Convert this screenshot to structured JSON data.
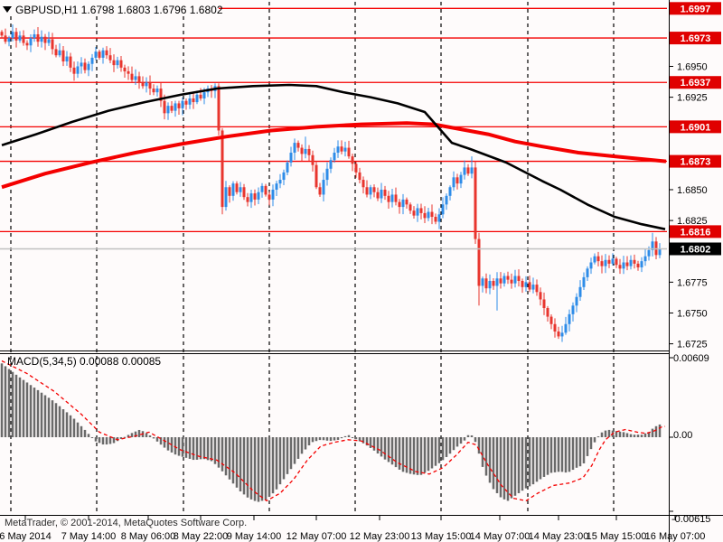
{
  "window": {
    "background": "#fefbfb",
    "foreground": "#000000"
  },
  "title": {
    "marker_icon": "triangle-down",
    "symbol_period": "GBPUSD,H1",
    "open": "1.6798",
    "high": "1.6803",
    "low": "1.6796",
    "close": "1.6802"
  },
  "footer": {
    "copyright": "MetaTrader, © 2001-2014, MetaQuotes Software Corp."
  },
  "colors": {
    "bull_candle": "#2e8ce8",
    "bear_candle": "#e8352e",
    "level_line": "#f40000",
    "level_badge_bg": "#e00000",
    "price_badge_bg": "#000000",
    "badge_text": "#ffffff",
    "ma_black": "#000000",
    "ma_red": "#f40000",
    "bid_line": "#c0c0c0",
    "macd_bar": "#6a6a6a",
    "macd_signal": "#f40000",
    "axis_text": "#000000",
    "separator": "#000000"
  },
  "chart_data": {
    "type": "candlestick",
    "symbol": "GBPUSD",
    "timeframe": "H1",
    "price_axis": {
      "plain_ticks": [
        1.695,
        1.6925,
        1.685,
        1.6825,
        1.6775,
        1.675,
        1.6725
      ],
      "level_lines": [
        1.6997,
        1.6973,
        1.6937,
        1.6901,
        1.6873,
        1.6816
      ],
      "bid_price": 1.6802,
      "ylim": [
        1.6718,
        1.7002
      ]
    },
    "candles": {
      "start_x": 2,
      "spacing": 4,
      "first_open": 1.6978,
      "closes": [
        1.6975,
        1.697,
        1.6973,
        1.6978,
        1.6971,
        1.6975,
        1.6969,
        1.6967,
        1.6973,
        1.6976,
        1.697,
        1.6974,
        1.6969,
        1.6972,
        1.6964,
        1.6959,
        1.6963,
        1.6954,
        1.6958,
        1.6949,
        1.6944,
        1.695,
        1.6953,
        1.6947,
        1.6952,
        1.6957,
        1.6962,
        1.6957,
        1.6963,
        1.6959,
        1.6955,
        1.6951,
        1.6955,
        1.6949,
        1.6946,
        1.6944,
        1.6939,
        1.6942,
        1.6937,
        1.6934,
        1.6937,
        1.6932,
        1.6929,
        1.6932,
        1.6922,
        1.6912,
        1.6918,
        1.6914,
        1.692,
        1.6916,
        1.6922,
        1.6919,
        1.6924,
        1.6921,
        1.6927,
        1.6924,
        1.6929,
        1.6932,
        1.693,
        1.6934,
        1.6898,
        1.6836,
        1.6852,
        1.6845,
        1.6855,
        1.6848,
        1.6852,
        1.6844,
        1.684,
        1.6847,
        1.6842,
        1.6848,
        1.6853,
        1.6846,
        1.6842,
        1.685,
        1.6855,
        1.6858,
        1.6864,
        1.6872,
        1.688,
        1.6888,
        1.6884,
        1.6879,
        1.6883,
        1.6878,
        1.687,
        1.6852,
        1.6846,
        1.6858,
        1.6867,
        1.6874,
        1.688,
        1.6885,
        1.6881,
        1.6884,
        1.6877,
        1.6871,
        1.6864,
        1.6858,
        1.6852,
        1.6846,
        1.6852,
        1.6848,
        1.6843,
        1.685,
        1.6845,
        1.684,
        1.6846,
        1.684,
        1.6836,
        1.6842,
        1.6838,
        1.6833,
        1.6829,
        1.6835,
        1.6831,
        1.6827,
        1.6832,
        1.6828,
        1.6824,
        1.683,
        1.6838,
        1.6845,
        1.6852,
        1.686,
        1.6855,
        1.6862,
        1.6868,
        1.6863,
        1.6868,
        1.681,
        1.6772,
        1.6778,
        1.677,
        1.6776,
        1.6772,
        1.6778,
        1.6774,
        1.678,
        1.6777,
        1.6774,
        1.678,
        1.6776,
        1.6771,
        1.6775,
        1.6769,
        1.6773,
        1.6767,
        1.6761,
        1.6754,
        1.6747,
        1.6741,
        1.6735,
        1.6731,
        1.6734,
        1.6741,
        1.6749,
        1.6756,
        1.6763,
        1.6771,
        1.6779,
        1.6786,
        1.6791,
        1.6796,
        1.6792,
        1.6788,
        1.6793,
        1.679,
        1.6794,
        1.6789,
        1.6786,
        1.6791,
        1.6788,
        1.6793,
        1.679,
        1.6787,
        1.6792,
        1.6796,
        1.6801,
        1.6808,
        1.6797,
        1.6802
      ],
      "wick_overrides": {
        "3": {
          "high": 1.6984
        },
        "61": {
          "low": 1.683
        },
        "84": {
          "high": 1.6893
        },
        "93": {
          "high": 1.689
        },
        "121": {
          "low": 1.6818
        },
        "130": {
          "high": 1.6877
        },
        "131": {
          "low": 1.6806
        },
        "132": {
          "low": 1.6756
        },
        "137": {
          "low": 1.6752
        },
        "154": {
          "low": 1.6729
        },
        "180": {
          "high": 1.6815
        }
      }
    },
    "ma_black": [
      [
        2,
        1.6886
      ],
      [
        40,
        1.6895
      ],
      [
        80,
        1.6905
      ],
      [
        120,
        1.6914
      ],
      [
        160,
        1.6921
      ],
      [
        200,
        1.6927
      ],
      [
        240,
        1.6932
      ],
      [
        280,
        1.6934
      ],
      [
        320,
        1.6935
      ],
      [
        350,
        1.6934
      ],
      [
        380,
        1.6929
      ],
      [
        410,
        1.6925
      ],
      [
        440,
        1.692
      ],
      [
        470,
        1.6913
      ],
      [
        500,
        1.6888
      ],
      [
        520,
        1.6883
      ],
      [
        560,
        1.6872
      ],
      [
        600,
        1.6857
      ],
      [
        620,
        1.685
      ],
      [
        650,
        1.6838
      ],
      [
        680,
        1.6828
      ],
      [
        710,
        1.6822
      ],
      [
        736,
        1.6818
      ]
    ],
    "ma_red": [
      [
        2,
        1.6852
      ],
      [
        50,
        1.6863
      ],
      [
        100,
        1.6872
      ],
      [
        150,
        1.688
      ],
      [
        200,
        1.6887
      ],
      [
        250,
        1.6893
      ],
      [
        300,
        1.6898
      ],
      [
        350,
        1.6901
      ],
      [
        400,
        1.6903
      ],
      [
        450,
        1.6904
      ],
      [
        480,
        1.6903
      ],
      [
        510,
        1.6899
      ],
      [
        540,
        1.6895
      ],
      [
        570,
        1.6889
      ],
      [
        600,
        1.6885
      ],
      [
        640,
        1.688
      ],
      [
        680,
        1.6877
      ],
      [
        737,
        1.6873
      ]
    ],
    "macd": {
      "name": "MACD(5,34,5)",
      "value_main": "0.00088",
      "value_signal": "0.00085",
      "axis_top": "0.00609",
      "axis_zero": "0.00",
      "axis_bottom": "-0.00615",
      "histogram": [
        [
          2,
          0.0058
        ],
        [
          20,
          0.0048
        ],
        [
          40,
          0.0038
        ],
        [
          60,
          0.0028
        ],
        [
          80,
          0.0016
        ],
        [
          95,
          0.0005
        ],
        [
          105,
          -0.0003
        ],
        [
          115,
          -0.0006
        ],
        [
          125,
          -0.0005
        ],
        [
          135,
          -0.0001
        ],
        [
          145,
          0.0003
        ],
        [
          155,
          0.0006
        ],
        [
          165,
          0.0002
        ],
        [
          175,
          -0.0004
        ],
        [
          185,
          -0.001
        ],
        [
          195,
          -0.0014
        ],
        [
          205,
          -0.0016
        ],
        [
          215,
          -0.0018
        ],
        [
          225,
          -0.0017
        ],
        [
          235,
          -0.0019
        ],
        [
          245,
          -0.0026
        ],
        [
          255,
          -0.0034
        ],
        [
          265,
          -0.0042
        ],
        [
          275,
          -0.0048
        ],
        [
          285,
          -0.0051
        ],
        [
          295,
          -0.0049
        ],
        [
          305,
          -0.0042
        ],
        [
          315,
          -0.0032
        ],
        [
          325,
          -0.0022
        ],
        [
          335,
          -0.0012
        ],
        [
          345,
          -0.0004
        ],
        [
          355,
          -0.0002
        ],
        [
          365,
          -0.0003
        ],
        [
          375,
          -0.0002
        ],
        [
          385,
          0.0002
        ],
        [
          395,
          -0.0002
        ],
        [
          405,
          -0.0006
        ],
        [
          415,
          -0.0011
        ],
        [
          425,
          -0.0017
        ],
        [
          435,
          -0.0022
        ],
        [
          445,
          -0.0027
        ],
        [
          455,
          -0.0029
        ],
        [
          465,
          -0.003
        ],
        [
          475,
          -0.0026
        ],
        [
          485,
          -0.0021
        ],
        [
          495,
          -0.0015
        ],
        [
          505,
          -0.0008
        ],
        [
          515,
          -0.0002
        ],
        [
          520,
          0.0004
        ],
        [
          527,
          -0.0005
        ],
        [
          535,
          -0.0026
        ],
        [
          545,
          -0.004
        ],
        [
          555,
          -0.0048
        ],
        [
          562,
          -0.005
        ],
        [
          570,
          -0.0046
        ],
        [
          580,
          -0.0041
        ],
        [
          590,
          -0.0037
        ],
        [
          600,
          -0.0032
        ],
        [
          610,
          -0.0028
        ],
        [
          620,
          -0.0027
        ],
        [
          628,
          -0.0028
        ],
        [
          638,
          -0.0024
        ],
        [
          645,
          -0.0022
        ],
        [
          652,
          -0.0012
        ],
        [
          658,
          -0.0004
        ],
        [
          664,
          0.0003
        ],
        [
          672,
          0.0006
        ],
        [
          680,
          0.0005
        ],
        [
          690,
          0.0004
        ],
        [
          700,
          0.0002
        ],
        [
          710,
          0.0002
        ],
        [
          718,
          0.0004
        ],
        [
          724,
          0.0008
        ],
        [
          730,
          0.001
        ],
        [
          734,
          0.00085
        ]
      ],
      "signal": [
        [
          2,
          0.006
        ],
        [
          30,
          0.005
        ],
        [
          60,
          0.0036
        ],
        [
          90,
          0.0018
        ],
        [
          110,
          0.0004
        ],
        [
          130,
          -0.0002
        ],
        [
          150,
          0.0001
        ],
        [
          165,
          0.0004
        ],
        [
          180,
          -0.0002
        ],
        [
          200,
          -0.001
        ],
        [
          220,
          -0.0015
        ],
        [
          240,
          -0.0018
        ],
        [
          260,
          -0.0028
        ],
        [
          280,
          -0.0042
        ],
        [
          295,
          -0.005
        ],
        [
          310,
          -0.0044
        ],
        [
          325,
          -0.0033
        ],
        [
          340,
          -0.0018
        ],
        [
          355,
          -0.0007
        ],
        [
          370,
          -0.0004
        ],
        [
          385,
          -0.0002
        ],
        [
          400,
          -0.0003
        ],
        [
          420,
          -0.001
        ],
        [
          440,
          -0.002
        ],
        [
          460,
          -0.0027
        ],
        [
          475,
          -0.0029
        ],
        [
          490,
          -0.0024
        ],
        [
          505,
          -0.0014
        ],
        [
          518,
          -0.0004
        ],
        [
          527,
          -0.0006
        ],
        [
          540,
          -0.0022
        ],
        [
          555,
          -0.0038
        ],
        [
          568,
          -0.0048
        ],
        [
          582,
          -0.005
        ],
        [
          595,
          -0.0044
        ],
        [
          612,
          -0.0038
        ],
        [
          630,
          -0.0036
        ],
        [
          645,
          -0.0032
        ],
        [
          655,
          -0.0022
        ],
        [
          663,
          -0.001
        ],
        [
          670,
          -0.0002
        ],
        [
          680,
          0.0004
        ],
        [
          692,
          0.0006
        ],
        [
          705,
          0.0004
        ],
        [
          715,
          0.0003
        ],
        [
          724,
          0.0005
        ],
        [
          732,
          0.0008
        ],
        [
          736,
          0.00085
        ]
      ],
      "ylim": [
        -0.00615,
        0.00609
      ]
    },
    "time_axis": {
      "labels": [
        "6 May 2014",
        "7 May 14:00",
        "8 May 06:00",
        "8 May 22:00",
        "9 May 14:00",
        "12 May 07:00",
        "12 May 23:00",
        "13 May 15:00",
        "14 May 07:00",
        "14 May 23:00",
        "15 May 15:00",
        "16 May 07:00"
      ],
      "positions": [
        28,
        98,
        164,
        222,
        281,
        350,
        420,
        488,
        553,
        618,
        682,
        747
      ]
    },
    "day_separators": [
      12,
      107,
      203,
      298,
      393,
      488,
      584,
      679
    ]
  }
}
